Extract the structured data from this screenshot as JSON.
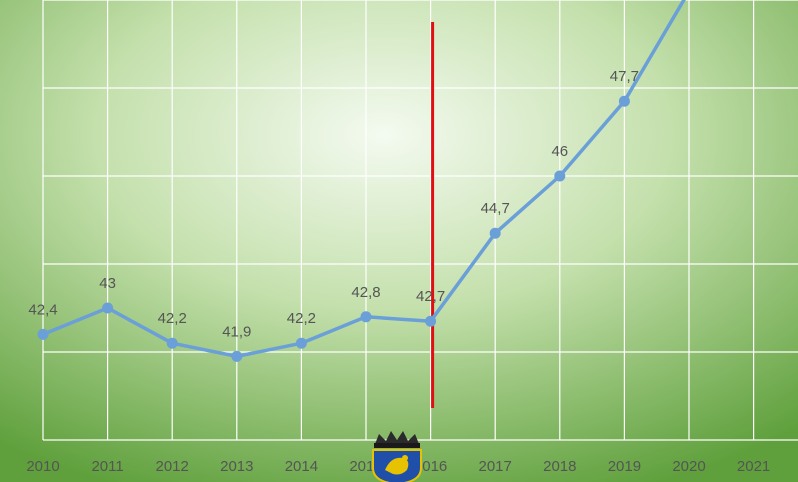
{
  "chart_data": {
    "type": "line",
    "title": "",
    "xlabel": "",
    "ylabel": "",
    "categories": [
      "2010",
      "2011",
      "2012",
      "2013",
      "2014",
      "2015",
      "2016",
      "2017",
      "2018",
      "2019",
      "2020",
      "2021"
    ],
    "series": [
      {
        "values": [
          42.4,
          43,
          42.2,
          41.9,
          42.2,
          42.8,
          42.7,
          44.7,
          46,
          47.7,
          50.2,
          null
        ],
        "data_labels": [
          "42,4",
          "43",
          "42,2",
          "41,9",
          "42,2",
          "42,8",
          "42,7",
          "44,7",
          "46",
          "47,7",
          "",
          ""
        ],
        "color": "#6a9fd8"
      }
    ],
    "ylim": [
      40,
      50
    ],
    "grid": true,
    "legend": "none",
    "marker_line": {
      "at_category": "2016",
      "color": "#e01010"
    },
    "emblem": "coat-of-arms-crowned-shield-icon",
    "colors": {
      "background_center": "#f4faf0",
      "background_edge": "#5fa03c",
      "grid": "#ffffff",
      "tick_label": "#555555"
    }
  }
}
